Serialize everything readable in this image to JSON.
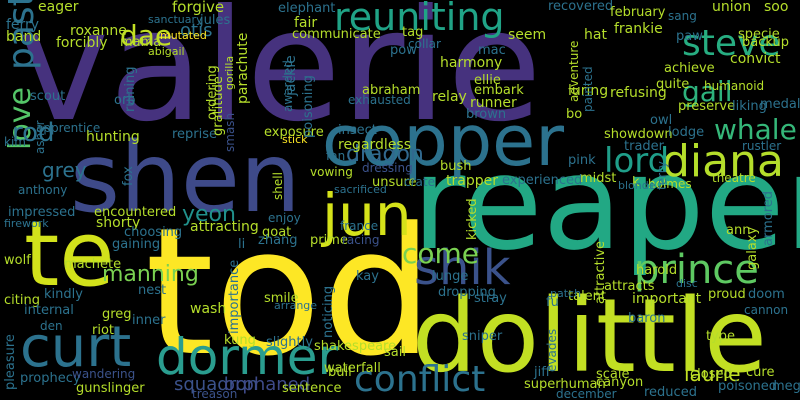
{
  "words": [
    {
      "text": "valerie",
      "color": "#46327e",
      "vertical": false
    },
    {
      "text": "tod",
      "color": "#fde725",
      "vertical": false
    },
    {
      "text": "reaper",
      "color": "#22a884",
      "vertical": false
    },
    {
      "text": "dolittle",
      "color": "#c2df23",
      "vertical": false
    },
    {
      "text": "shen",
      "color": "#3e4a89",
      "vertical": false
    },
    {
      "text": "te",
      "color": "#d2e21b",
      "vertical": false
    },
    {
      "text": "copper",
      "color": "#2c728e",
      "vertical": false
    },
    {
      "text": "curt",
      "color": "#2c728e",
      "vertical": false
    },
    {
      "text": "dormer",
      "color": "#2a9d8f",
      "vertical": false
    },
    {
      "text": "jun",
      "color": "#d5e21a",
      "vertical": false
    },
    {
      "text": "shik",
      "color": "#3b528b",
      "vertical": false
    },
    {
      "text": "prince",
      "color": "#5ec962",
      "vertical": false
    },
    {
      "text": "diana",
      "color": "#b5de2b",
      "vertical": false
    },
    {
      "text": "lord",
      "color": "#1f9e89",
      "vertical": false
    },
    {
      "text": "conflict",
      "color": "#2c728e",
      "vertical": false
    },
    {
      "text": "reuniting",
      "color": "#20a386",
      "vertical": false
    },
    {
      "text": "steve",
      "color": "#27ad81",
      "vertical": false
    },
    {
      "text": "come",
      "color": "#7ad151",
      "vertical": false
    },
    {
      "text": "whale",
      "color": "#35b779",
      "vertical": false
    },
    {
      "text": "past",
      "color": "#2c728e",
      "vertical": true
    },
    {
      "text": "love",
      "color": "#54c568",
      "vertical": true
    },
    {
      "text": "dae",
      "color": "#c2df23",
      "vertical": false
    },
    {
      "text": "gail",
      "color": "#2db27d",
      "vertical": false
    },
    {
      "text": "rod",
      "color": "#2c728e",
      "vertical": false
    },
    {
      "text": "yeon",
      "color": "#21918c",
      "vertical": false
    },
    {
      "text": "manning",
      "color": "#7ad151",
      "vertical": false
    },
    {
      "text": "dragon",
      "color": "#31688e",
      "vertical": false
    },
    {
      "text": "grey",
      "color": "#2c728e",
      "vertical": false
    },
    {
      "text": "laurie",
      "color": "#c2df23",
      "vertical": false
    },
    {
      "text": "squadron",
      "color": "#3b528b",
      "vertical": false
    },
    {
      "text": "orphaned",
      "color": "#3e4a89",
      "vertical": false
    },
    {
      "text": "otis",
      "color": "#2c728e",
      "vertical": false
    },
    {
      "text": "eager",
      "color": "#b5de2b",
      "vertical": false
    },
    {
      "text": "forgive",
      "color": "#b5de2b",
      "vertical": false
    },
    {
      "text": "elephant",
      "color": "#2c728e",
      "vertical": false
    },
    {
      "text": "union",
      "color": "#b5de2b",
      "vertical": false
    },
    {
      "text": "soo",
      "color": "#b5de2b",
      "vertical": false
    },
    {
      "text": "recovered",
      "color": "#2c728e",
      "vertical": false
    },
    {
      "text": "february",
      "color": "#b5de2b",
      "vertical": false
    },
    {
      "text": "frankie",
      "color": "#b5de2b",
      "vertical": false
    },
    {
      "text": "convict",
      "color": "#b5de2b",
      "vertical": false
    },
    {
      "text": "harmony",
      "color": "#b5de2b",
      "vertical": false
    },
    {
      "text": "achieve",
      "color": "#b5de2b",
      "vertical": false
    },
    {
      "text": "humanoid",
      "color": "#b5de2b",
      "vertical": false
    },
    {
      "text": "ellie",
      "color": "#b5de2b",
      "vertical": false
    },
    {
      "text": "embark",
      "color": "#b5de2b",
      "vertical": false
    },
    {
      "text": "luring",
      "color": "#b5de2b",
      "vertical": false
    },
    {
      "text": "refusing",
      "color": "#b5de2b",
      "vertical": false
    },
    {
      "text": "preserve",
      "color": "#b5de2b",
      "vertical": false
    },
    {
      "text": "relay",
      "color": "#b5de2b",
      "vertical": false
    },
    {
      "text": "runner",
      "color": "#b5de2b",
      "vertical": false
    },
    {
      "text": "abraham",
      "color": "#b5de2b",
      "vertical": false
    },
    {
      "text": "exhausted",
      "color": "#2c728e",
      "vertical": false
    },
    {
      "text": "brown",
      "color": "#2c728e",
      "vertical": false
    },
    {
      "text": "showdown",
      "color": "#b5de2b",
      "vertical": false
    },
    {
      "text": "trader",
      "color": "#2c728e",
      "vertical": false
    },
    {
      "text": "rustler",
      "color": "#2c728e",
      "vertical": false
    },
    {
      "text": "theatre",
      "color": "#b5de2b",
      "vertical": false
    },
    {
      "text": "holmes",
      "color": "#b5de2b",
      "vertical": false
    },
    {
      "text": "insect",
      "color": "#2c728e",
      "vertical": false
    },
    {
      "text": "regardless",
      "color": "#b5de2b",
      "vertical": false
    },
    {
      "text": "exposure",
      "color": "#b5de2b",
      "vertical": false
    },
    {
      "text": "reprise",
      "color": "#2c728e",
      "vertical": false
    },
    {
      "text": "apprentice",
      "color": "#2c728e",
      "vertical": false
    },
    {
      "text": "hunting",
      "color": "#b5de2b",
      "vertical": false
    },
    {
      "text": "bush",
      "color": "#b5de2b",
      "vertical": false
    },
    {
      "text": "trapper",
      "color": "#b5de2b",
      "vertical": false
    },
    {
      "text": "experienced",
      "color": "#2c728e",
      "vertical": false
    },
    {
      "text": "fan",
      "color": "#2c728e",
      "vertical": false
    },
    {
      "text": "vowing",
      "color": "#b5de2b",
      "vertical": false
    },
    {
      "text": "unsure",
      "color": "#b5de2b",
      "vertical": false
    },
    {
      "text": "crate",
      "color": "#2c728e",
      "vertical": false
    },
    {
      "text": "dressing",
      "color": "#3b528b",
      "vertical": false
    },
    {
      "text": "impressed",
      "color": "#2c728e",
      "vertical": false
    },
    {
      "text": "encountered",
      "color": "#b5de2b",
      "vertical": false
    },
    {
      "text": "shorty",
      "color": "#b5de2b",
      "vertical": false
    },
    {
      "text": "choosing",
      "color": "#2c728e",
      "vertical": false
    },
    {
      "text": "gaining",
      "color": "#2c728e",
      "vertical": false
    },
    {
      "text": "attracting",
      "color": "#b5de2b",
      "vertical": false
    },
    {
      "text": "goat",
      "color": "#b5de2b",
      "vertical": false
    },
    {
      "text": "prime",
      "color": "#b5de2b",
      "vertical": false
    },
    {
      "text": "france",
      "color": "#2c728e",
      "vertical": false
    },
    {
      "text": "racing",
      "color": "#3b528b",
      "vertical": false
    },
    {
      "text": "zhang",
      "color": "#2c728e",
      "vertical": false
    },
    {
      "text": "enjoy",
      "color": "#2c728e",
      "vertical": false
    },
    {
      "text": "machete",
      "color": "#b5de2b",
      "vertical": false
    },
    {
      "text": "wolf",
      "color": "#b5de2b",
      "vertical": false
    },
    {
      "text": "citing",
      "color": "#b5de2b",
      "vertical": false
    },
    {
      "text": "kindly",
      "color": "#2c728e",
      "vertical": false
    },
    {
      "text": "internal",
      "color": "#2c728e",
      "vertical": false
    },
    {
      "text": "den",
      "color": "#2c728e",
      "vertical": false
    },
    {
      "text": "riot",
      "color": "#b5de2b",
      "vertical": false
    },
    {
      "text": "greg",
      "color": "#b5de2b",
      "vertical": false
    },
    {
      "text": "inner",
      "color": "#2c728e",
      "vertical": false
    },
    {
      "text": "nest",
      "color": "#2c728e",
      "vertical": false
    },
    {
      "text": "wash",
      "color": "#b5de2b",
      "vertical": false
    },
    {
      "text": "smile",
      "color": "#b5de2b",
      "vertical": false
    },
    {
      "text": "kay",
      "color": "#2c728e",
      "vertical": false
    },
    {
      "text": "lunge",
      "color": "#2c728e",
      "vertical": false
    },
    {
      "text": "dropping",
      "color": "#2c728e",
      "vertical": false
    },
    {
      "text": "stray",
      "color": "#2c728e",
      "vertical": false
    },
    {
      "text": "attracts",
      "color": "#b5de2b",
      "vertical": false
    },
    {
      "text": "talent",
      "color": "#b5de2b",
      "vertical": false
    },
    {
      "text": "important",
      "color": "#b5de2b",
      "vertical": false
    },
    {
      "text": "proud",
      "color": "#b5de2b",
      "vertical": false
    },
    {
      "text": "doom",
      "color": "#2c728e",
      "vertical": false
    },
    {
      "text": "cannon",
      "color": "#2c728e",
      "vertical": false
    },
    {
      "text": "harold",
      "color": "#b5de2b",
      "vertical": false
    },
    {
      "text": "ann",
      "color": "#b5de2b",
      "vertical": false
    },
    {
      "text": "baron",
      "color": "#2c728e",
      "vertical": false
    },
    {
      "text": "type",
      "color": "#b5de2b",
      "vertical": false
    },
    {
      "text": "closed",
      "color": "#b5de2b",
      "vertical": false
    },
    {
      "text": "poisoned",
      "color": "#2c728e",
      "vertical": false
    },
    {
      "text": "scale",
      "color": "#b5de2b",
      "vertical": false
    },
    {
      "text": "superhuman",
      "color": "#b5de2b",
      "vertical": false
    },
    {
      "text": "canyon",
      "color": "#b5de2b",
      "vertical": false
    },
    {
      "text": "reduced",
      "color": "#2c728e",
      "vertical": false
    },
    {
      "text": "december",
      "color": "#2c728e",
      "vertical": false
    },
    {
      "text": "kung",
      "color": "#b5de2b",
      "vertical": false
    },
    {
      "text": "slightly",
      "color": "#2c728e",
      "vertical": false
    },
    {
      "text": "shakespeare",
      "color": "#b5de2b",
      "vertical": false
    },
    {
      "text": "sail",
      "color": "#b5de2b",
      "vertical": false
    },
    {
      "text": "waterfall",
      "color": "#b5de2b",
      "vertical": false
    },
    {
      "text": "bull",
      "color": "#b5de2b",
      "vertical": false
    },
    {
      "text": "sentence",
      "color": "#b5de2b",
      "vertical": false
    },
    {
      "text": "gunslinger",
      "color": "#b5de2b",
      "vertical": false
    },
    {
      "text": "prophecy",
      "color": "#2c728e",
      "vertical": false
    },
    {
      "text": "wandering",
      "color": "#3b528b",
      "vertical": false
    },
    {
      "text": "treason",
      "color": "#3b528b",
      "vertical": false
    },
    {
      "text": "ferry",
      "color": "#2c728e",
      "vertical": false
    },
    {
      "text": "band",
      "color": "#b5de2b",
      "vertical": false
    },
    {
      "text": "roxanne",
      "color": "#b5de2b",
      "vertical": false
    },
    {
      "text": "forcibly",
      "color": "#b5de2b",
      "vertical": false
    },
    {
      "text": "mama",
      "color": "#b5de2b",
      "vertical": false
    },
    {
      "text": "mutated",
      "color": "#fde725",
      "vertical": false
    },
    {
      "text": "abigail",
      "color": "#b5de2b",
      "vertical": false
    },
    {
      "text": "jules",
      "color": "#2c728e",
      "vertical": false
    },
    {
      "text": "sanctuary",
      "color": "#2c728e",
      "vertical": false
    },
    {
      "text": "fair",
      "color": "#b5de2b",
      "vertical": false
    },
    {
      "text": "communicate",
      "color": "#b5de2b",
      "vertical": false
    },
    {
      "text": "tag",
      "color": "#b5de2b",
      "vertical": false
    },
    {
      "text": "collar",
      "color": "#2c728e",
      "vertical": false
    },
    {
      "text": "seem",
      "color": "#b5de2b",
      "vertical": false
    },
    {
      "text": "pow",
      "color": "#2c728e",
      "vertical": false
    },
    {
      "text": "mac",
      "color": "#2c728e",
      "vertical": false
    },
    {
      "text": "hat",
      "color": "#b5de2b",
      "vertical": false
    },
    {
      "text": "sang",
      "color": "#2c728e",
      "vertical": false
    },
    {
      "text": "paw",
      "color": "#2c728e",
      "vertical": false
    },
    {
      "text": "specie",
      "color": "#b5de2b",
      "vertical": false
    },
    {
      "text": "backup",
      "color": "#b5de2b",
      "vertical": false
    },
    {
      "text": "medal",
      "color": "#2c728e",
      "vertical": false
    },
    {
      "text": "liking",
      "color": "#2c728e",
      "vertical": false
    },
    {
      "text": "quite",
      "color": "#b5de2b",
      "vertical": false
    },
    {
      "text": "owl",
      "color": "#2c728e",
      "vertical": false
    },
    {
      "text": "lodge",
      "color": "#2c728e",
      "vertical": false
    },
    {
      "text": "bo",
      "color": "#b5de2b",
      "vertical": false
    },
    {
      "text": "pink",
      "color": "#2c728e",
      "vertical": false
    },
    {
      "text": "midst",
      "color": "#b5de2b",
      "vertical": false
    },
    {
      "text": "k",
      "color": "#b5de2b",
      "vertical": false
    },
    {
      "text": "fu",
      "color": "#2c728e",
      "vertical": false
    },
    {
      "text": "kim",
      "color": "#2c728e",
      "vertical": false
    },
    {
      "text": "scout",
      "color": "#2c728e",
      "vertical": false
    },
    {
      "text": "orb",
      "color": "#2c728e",
      "vertical": false
    },
    {
      "text": "stick",
      "color": "#fde725",
      "vertical": false
    },
    {
      "text": "sacrificed",
      "color": "#2c728e",
      "vertical": false
    },
    {
      "text": "anthony",
      "color": "#2c728e",
      "vertical": false
    },
    {
      "text": "firework",
      "color": "#2c728e",
      "vertical": false
    },
    {
      "text": "li",
      "color": "#2c728e",
      "vertical": false
    },
    {
      "text": "arrange",
      "color": "#2c728e",
      "vertical": false
    },
    {
      "text": "disc",
      "color": "#2c728e",
      "vertical": false
    },
    {
      "text": "patch",
      "color": "#2c728e",
      "vertical": false
    },
    {
      "text": "pleasure",
      "color": "#2c728e",
      "vertical": true
    },
    {
      "text": "sniper",
      "color": "#2c728e",
      "vertical": false
    },
    {
      "text": "cure",
      "color": "#b5de2b",
      "vertical": false
    },
    {
      "text": "meg",
      "color": "#2c728e",
      "vertical": false
    },
    {
      "text": "ruining",
      "color": "#2c728e",
      "vertical": true
    },
    {
      "text": "ordering",
      "color": "#b5de2b",
      "vertical": true
    },
    {
      "text": "gorilla",
      "color": "#b5de2b",
      "vertical": true
    },
    {
      "text": "parachute",
      "color": "#b5de2b",
      "vertical": true
    },
    {
      "text": "awarded",
      "color": "#2c728e",
      "vertical": true
    },
    {
      "text": "jackie",
      "color": "#2c728e",
      "vertical": true
    },
    {
      "text": "poisoning",
      "color": "#2c728e",
      "vertical": true
    },
    {
      "text": "gratitude",
      "color": "#b5de2b",
      "vertical": true
    },
    {
      "text": "smash",
      "color": "#3b528b",
      "vertical": true
    },
    {
      "text": "shell",
      "color": "#b5de2b",
      "vertical": true
    },
    {
      "text": "asher",
      "color": "#2c728e",
      "vertical": true
    },
    {
      "text": "fox",
      "color": "#2c728e",
      "vertical": true
    },
    {
      "text": "importance",
      "color": "#2c728e",
      "vertical": true
    },
    {
      "text": "noticing",
      "color": "#2c728e",
      "vertical": true
    },
    {
      "text": "kicked",
      "color": "#b5de2b",
      "vertical": true
    },
    {
      "text": "attractive",
      "color": "#b5de2b",
      "vertical": true
    },
    {
      "text": "evades",
      "color": "#2c728e",
      "vertical": true
    },
    {
      "text": "painted",
      "color": "#2c728e",
      "vertical": true
    },
    {
      "text": "adventure",
      "color": "#b5de2b",
      "vertical": true
    },
    {
      "text": "galaxy",
      "color": "#b5de2b",
      "vertical": true
    },
    {
      "text": "armored",
      "color": "#2c728e",
      "vertical": true
    },
    {
      "text": "terry",
      "color": "#2c728e",
      "vertical": true
    },
    {
      "text": "blonde",
      "color": "#2c728e",
      "vertical": false
    },
    {
      "text": "jiff",
      "color": "#2c728e",
      "vertical": false
    }
  ]
}
